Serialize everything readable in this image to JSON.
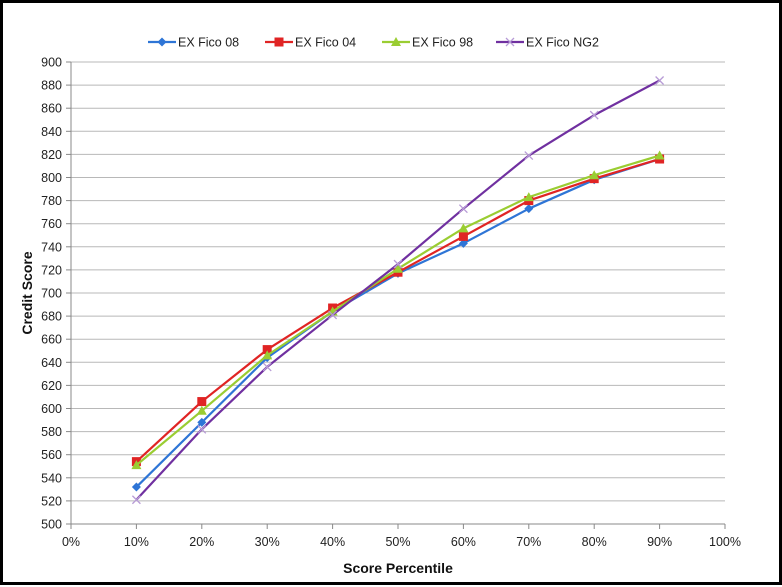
{
  "chart_data": {
    "type": "line",
    "title": "",
    "xlabel": "Score Percentile",
    "ylabel": "Credit Score",
    "x": [
      "10%",
      "20%",
      "30%",
      "40%",
      "50%",
      "60%",
      "70%",
      "80%",
      "90%"
    ],
    "x_numeric": [
      10,
      20,
      30,
      40,
      50,
      60,
      70,
      80,
      90
    ],
    "xlim": [
      0,
      100
    ],
    "ylim": [
      500,
      900
    ],
    "x_ticks": [
      "0%",
      "10%",
      "20%",
      "30%",
      "40%",
      "50%",
      "60%",
      "70%",
      "80%",
      "90%",
      "100%"
    ],
    "y_ticks": [
      500,
      520,
      540,
      560,
      580,
      600,
      620,
      640,
      660,
      680,
      700,
      720,
      740,
      760,
      780,
      800,
      820,
      840,
      860,
      880,
      900
    ],
    "grid": {
      "horizontal": true,
      "vertical": false
    },
    "legend_position": "top",
    "series": [
      {
        "name": "EX Fico 08",
        "color": "#2e75d6",
        "marker": "diamond",
        "values": [
          532,
          588,
          644,
          684,
          717,
          743,
          773,
          798,
          816
        ]
      },
      {
        "name": "EX Fico 04",
        "color": "#e02424",
        "marker": "square",
        "values": [
          554,
          606,
          651,
          687,
          718,
          749,
          780,
          799,
          816
        ]
      },
      {
        "name": "EX Fico 98",
        "color": "#9acd32",
        "marker": "triangle",
        "values": [
          551,
          598,
          646,
          684,
          721,
          756,
          783,
          802,
          819
        ]
      },
      {
        "name": "EX Fico NG2",
        "color": "#7030a0",
        "marker": "x",
        "values": [
          521,
          582,
          636,
          681,
          725,
          773,
          819,
          854,
          884
        ]
      }
    ]
  }
}
